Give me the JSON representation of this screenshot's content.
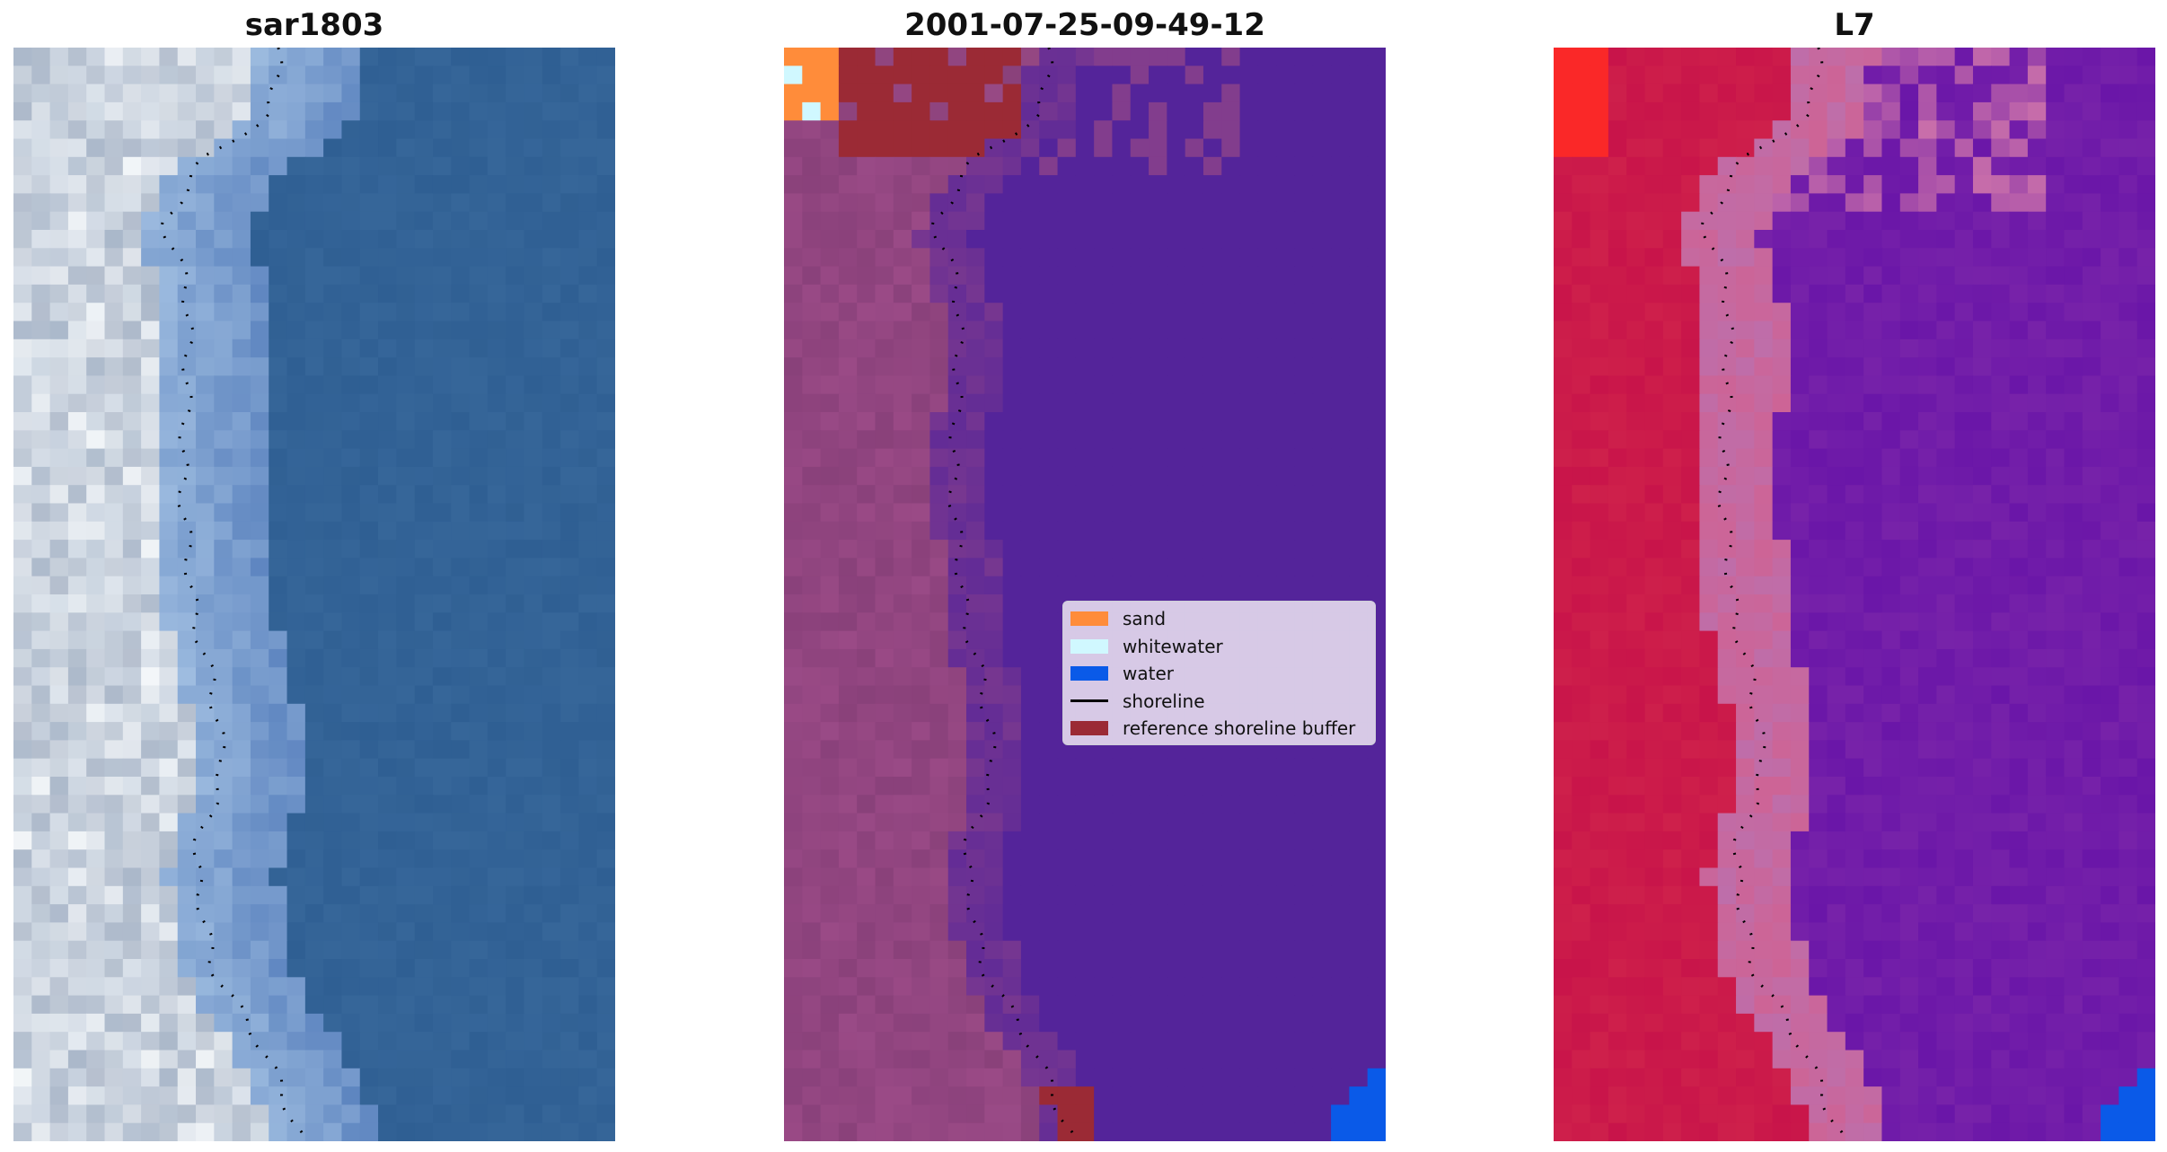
{
  "panels": [
    {
      "id": "rgb",
      "title": "sar1803",
      "colormap": "rgb"
    },
    {
      "id": "classified",
      "title": "2001-07-25-09-49-12",
      "colormap": "classified"
    },
    {
      "id": "index",
      "title": "L7",
      "colormap": "index"
    }
  ],
  "legend": {
    "items": [
      {
        "label": "sand",
        "color": "#ff8c3a",
        "kind": "patch"
      },
      {
        "label": "whitewater",
        "color": "#d0f8ff",
        "kind": "patch"
      },
      {
        "label": "water",
        "color": "#0a5ae8",
        "kind": "patch"
      },
      {
        "label": "shoreline",
        "color": "#000000",
        "kind": "line"
      },
      {
        "label": "reference shoreline buffer",
        "color": "#9b2a35",
        "kind": "patch"
      }
    ]
  },
  "colors": {
    "water_rgb": "#2f5f93",
    "land_rgb": "#c9d2dc",
    "water_class": "#54249a",
    "land_class": "#9a4a86",
    "index_land": "#c8144a",
    "index_water": "#6a16a8",
    "shoreline": "#000000"
  }
}
